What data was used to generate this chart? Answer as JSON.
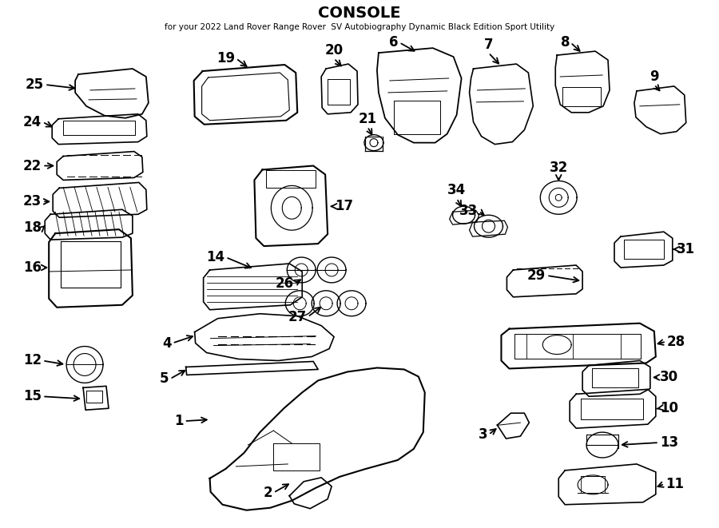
{
  "title": "CONSOLE",
  "subtitle": "for your 2022 Land Rover Range Rover  SV Autobiography Dynamic Black Edition Sport Utility",
  "bg_color": "#ffffff",
  "line_color": "#000000",
  "figsize": [
    9.0,
    6.61
  ],
  "dpi": 100,
  "xlim": [
    0,
    900
  ],
  "ylim": [
    0,
    661
  ]
}
